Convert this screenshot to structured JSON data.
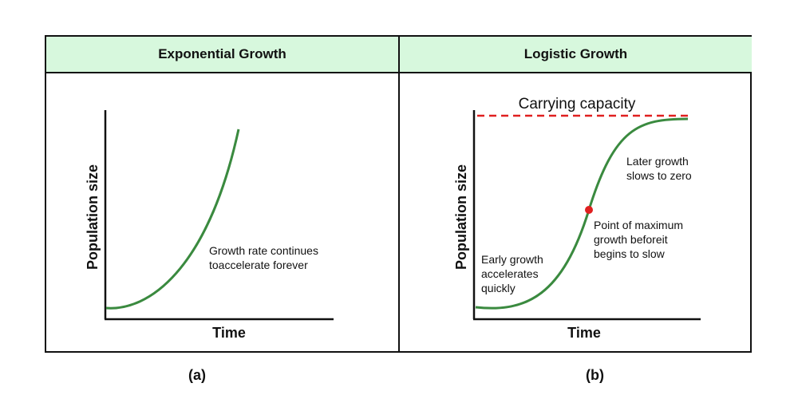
{
  "panels": [
    {
      "title": "Exponential Growth",
      "xlabel": "Time",
      "ylabel": "Population size",
      "annotation": [
        "Growth rate continues",
        "toaccelerate forever"
      ],
      "caption": "(a)"
    },
    {
      "title": "Logistic Growth",
      "xlabel": "Time",
      "ylabel": "Population size",
      "capacity_label": "Carrying capacity",
      "annotation_later": [
        "Later growth",
        "slows to zero"
      ],
      "annotation_max": [
        "Point of maximum",
        "growth beforeit",
        "begins to slow"
      ],
      "annotation_early": [
        "Early growth",
        "accelerates",
        "quickly"
      ],
      "caption": "(b)"
    }
  ],
  "colors": {
    "header_bg": "#d7f8dd",
    "curve": "#3a8a3f",
    "capacity_line": "#e02020",
    "marker": "#e02020"
  }
}
